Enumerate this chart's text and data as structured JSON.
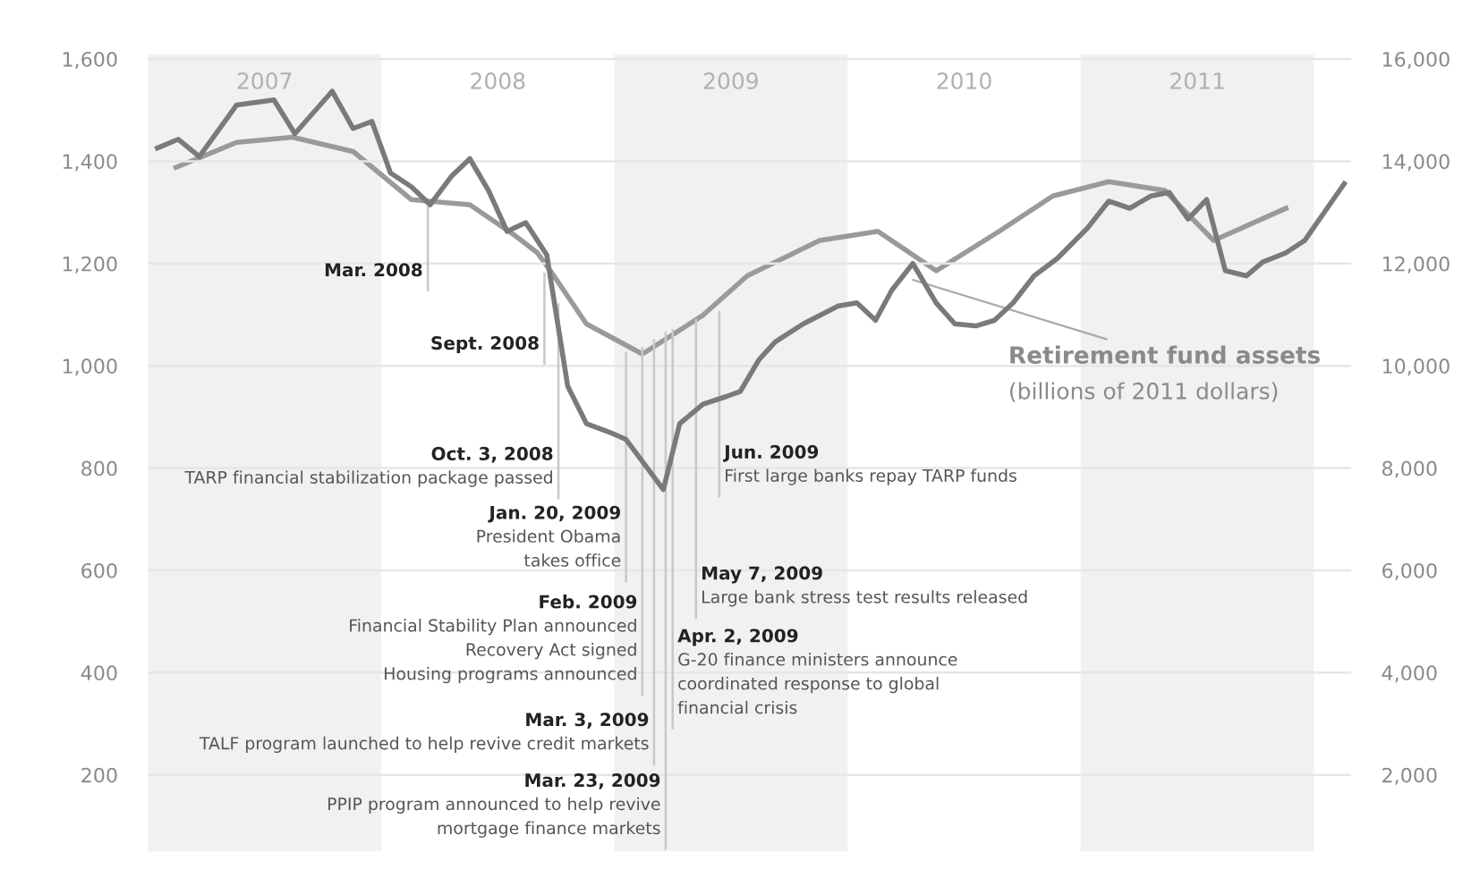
{
  "chart_data": {
    "type": "line",
    "x": [
      2007.04,
      2007.13,
      2007.22,
      2007.38,
      2007.54,
      2007.63,
      2007.79,
      2007.88,
      2007.96,
      2008.04,
      2008.13,
      2008.21,
      2008.3,
      2008.38,
      2008.46,
      2008.54,
      2008.62,
      2008.71,
      2008.8,
      2008.88,
      2008.98,
      2009.05,
      2009.21,
      2009.28,
      2009.38,
      2009.48,
      2009.54,
      2009.62,
      2009.69,
      2009.81,
      2009.96,
      2010.04,
      2010.12,
      2010.19,
      2010.28,
      2010.38,
      2010.46,
      2010.55,
      2010.63,
      2010.71,
      2010.8,
      2010.9,
      2011.03,
      2011.12,
      2011.21,
      2011.3,
      2011.38,
      2011.46,
      2011.54,
      2011.62,
      2011.71,
      2011.78,
      2011.88,
      2011.96,
      2012.13
    ],
    "series": [
      {
        "color": "#7a7a7a",
        "values": [
          1426,
          1443,
          1409,
          1510,
          1520,
          1454,
          1537,
          1464,
          1478,
          1377,
          1350,
          1315,
          1370,
          1405,
          1343,
          1263,
          1280,
          1217,
          960,
          887,
          870,
          856,
          758,
          887,
          925,
          940,
          950,
          1012,
          1047,
          1082,
          1117,
          1123,
          1089,
          1148,
          1200,
          1123,
          1082,
          1078,
          1089,
          1123,
          1176,
          1210,
          1270,
          1322,
          1308,
          1332,
          1339,
          1287,
          1325,
          1186,
          1176,
          1203,
          1221,
          1245,
          1356
        ]
      },
      {
        "name": "Retirement fund assets",
        "color": "#9a9a9a",
        "axis": "y2",
        "x": [
          2007.12,
          2007.38,
          2007.62,
          2007.88,
          2008.13,
          2008.38,
          2008.57,
          2008.67,
          2008.73,
          2008.88,
          2009.12,
          2009.38,
          2009.57,
          2009.88,
          2010.13,
          2010.38,
          2010.65,
          2010.88,
          2011.12,
          2011.36,
          2011.57,
          2011.88
        ],
        "values": [
          13880,
          14370,
          14470,
          14190,
          13250,
          13150,
          12560,
          12210,
          11830,
          10820,
          10230,
          10990,
          11760,
          12450,
          12630,
          11860,
          12630,
          13320,
          13600,
          13430,
          12450,
          13080
        ]
      }
    ],
    "xlim": [
      2007,
      2012.16
    ],
    "xticks": [
      {
        "value": 2007.5,
        "label": "2007"
      },
      {
        "value": 2008.5,
        "label": "2008"
      },
      {
        "value": 2009.5,
        "label": "2009"
      },
      {
        "value": 2010.5,
        "label": "2010"
      },
      {
        "value": 2011.5,
        "label": "2011"
      }
    ],
    "ylim": [
      50,
      1610
    ],
    "yticks": [
      {
        "value": 200,
        "label": "200"
      },
      {
        "value": 400,
        "label": "400"
      },
      {
        "value": 600,
        "label": "600"
      },
      {
        "value": 800,
        "label": "800"
      },
      {
        "value": 1000,
        "label": "1,000"
      },
      {
        "value": 1200,
        "label": "1,200"
      },
      {
        "value": 1400,
        "label": "1,400"
      },
      {
        "value": 1600,
        "label": "1,600"
      }
    ],
    "y2lim": [
      500,
      16100
    ],
    "y2ticks": [
      {
        "value": 2000,
        "label": "2,000"
      },
      {
        "value": 4000,
        "label": "4,000"
      },
      {
        "value": 6000,
        "label": "6,000"
      },
      {
        "value": 8000,
        "label": "8,000"
      },
      {
        "value": 10000,
        "label": "10,000"
      },
      {
        "value": 12000,
        "label": "12,000"
      },
      {
        "value": 14000,
        "label": "14,000"
      },
      {
        "value": 16000,
        "label": "16,000"
      }
    ],
    "bands": [
      {
        "axis": "x",
        "from": 2007,
        "to": 2008,
        "color": "#f1f1f1"
      },
      {
        "axis": "x",
        "from": 2009,
        "to": 2010,
        "color": "#f1f1f1"
      },
      {
        "axis": "x",
        "from": 2011,
        "to": 2012,
        "color": "#f1f1f1"
      }
    ],
    "grid": "y",
    "legend": false,
    "annotations": [
      {
        "text": "Mar. 2008",
        "x": 2008.2,
        "y": 1315
      },
      {
        "text": "Sept. 2008",
        "x": 2008.7,
        "y": 1180
      },
      {
        "text": "Oct. 3, 2008\nTARP financial stabilization package passed",
        "x": 2008.76,
        "y": 1120
      },
      {
        "text": "Jan. 20, 2009\nPresident Obama\ntakes office",
        "x": 2009.05,
        "y": 1025
      },
      {
        "text": "Feb. 2009\nFinancial Stability Plan announced\nRecovery Act signed\nHousing programs announced",
        "x": 2009.12,
        "y": 1035
      },
      {
        "text": "Mar. 3, 2009\nTALF program launched to help revive credit markets",
        "x": 2009.17,
        "y": 1050
      },
      {
        "text": "Mar. 23, 2009\nPPIP program announced to help revive\nmortgage finance markets",
        "x": 2009.22,
        "y": 1065
      },
      {
        "text": "Apr. 2, 2009\nG-20 finance ministers announce\ncoordinated response to global\nfinancial crisis",
        "x": 2009.25,
        "y": 1070
      },
      {
        "text": "May 7, 2009\nLarge bank stress test results released",
        "x": 2009.35,
        "y": 1090
      },
      {
        "text": "Jun. 2009\nFirst large banks repay TARP funds",
        "x": 2009.45,
        "y": 1105
      },
      "(billions of 2011 dollars)"
    ]
  }
}
